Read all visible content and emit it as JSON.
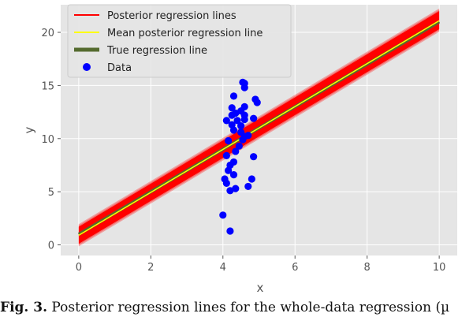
{
  "chart_data": {
    "type": "scatter",
    "xlabel": "x",
    "ylabel": "y",
    "xlim": [
      -0.5,
      10.5
    ],
    "ylim": [
      -1,
      22.6
    ],
    "x_ticks": [
      0,
      2,
      4,
      6,
      8,
      10
    ],
    "y_ticks": [
      0,
      5,
      10,
      15,
      20
    ],
    "grid": true,
    "legend_position": "top-left",
    "legend": [
      {
        "label": "Posterior regression lines",
        "color": "#ff0000",
        "kind": "line"
      },
      {
        "label": "Mean posterior regression line",
        "color": "#ffff00",
        "kind": "line"
      },
      {
        "label": "True regression line",
        "color": "#556b2f",
        "kind": "thick-line"
      },
      {
        "label": "Data",
        "color": "#0000ff",
        "kind": "marker"
      }
    ],
    "posterior_band": {
      "name": "Posterior regression lines",
      "x": [
        0,
        10
      ],
      "y_low": [
        0.1,
        20.3
      ],
      "y_high": [
        1.7,
        22.0
      ],
      "color": "#ff0000"
    },
    "mean_line": {
      "name": "Mean posterior regression line",
      "x": [
        0,
        10
      ],
      "y": [
        0.9,
        21.1
      ],
      "color": "#ffff00"
    },
    "true_line": {
      "name": "True regression line",
      "x": [
        0,
        10
      ],
      "y": [
        1.0,
        21.0
      ],
      "color": "#556b2f"
    },
    "series": [
      {
        "name": "Data",
        "color": "#0000ff",
        "points": [
          [
            4.0,
            2.8
          ],
          [
            4.2,
            1.3
          ],
          [
            4.05,
            6.2
          ],
          [
            4.1,
            5.8
          ],
          [
            4.2,
            5.1
          ],
          [
            4.15,
            7.0
          ],
          [
            4.35,
            5.3
          ],
          [
            4.3,
            6.6
          ],
          [
            4.2,
            7.5
          ],
          [
            4.3,
            7.8
          ],
          [
            4.35,
            8.8
          ],
          [
            4.1,
            8.4
          ],
          [
            4.7,
            5.5
          ],
          [
            4.8,
            6.2
          ],
          [
            4.85,
            8.3
          ],
          [
            4.55,
            9.9
          ],
          [
            4.6,
            10.2
          ],
          [
            4.3,
            10.8
          ],
          [
            4.15,
            9.8
          ],
          [
            4.5,
            11.2
          ],
          [
            4.4,
            11.7
          ],
          [
            4.25,
            11.3
          ],
          [
            4.1,
            11.7
          ],
          [
            4.25,
            12.2
          ],
          [
            4.35,
            12.4
          ],
          [
            4.5,
            12.6
          ],
          [
            4.6,
            12.2
          ],
          [
            4.6,
            11.8
          ],
          [
            4.25,
            12.9
          ],
          [
            4.6,
            13.0
          ],
          [
            4.85,
            11.9
          ],
          [
            4.3,
            14.0
          ],
          [
            4.55,
            15.3
          ],
          [
            4.6,
            15.2
          ],
          [
            4.6,
            14.8
          ],
          [
            4.9,
            13.7
          ],
          [
            4.95,
            13.4
          ],
          [
            4.5,
            10.6
          ],
          [
            4.7,
            10.3
          ],
          [
            4.45,
            9.3
          ]
        ]
      }
    ]
  },
  "caption": {
    "label": "Fig. 3.",
    "text": "Posterior regression lines for the whole-data regression (µ"
  }
}
